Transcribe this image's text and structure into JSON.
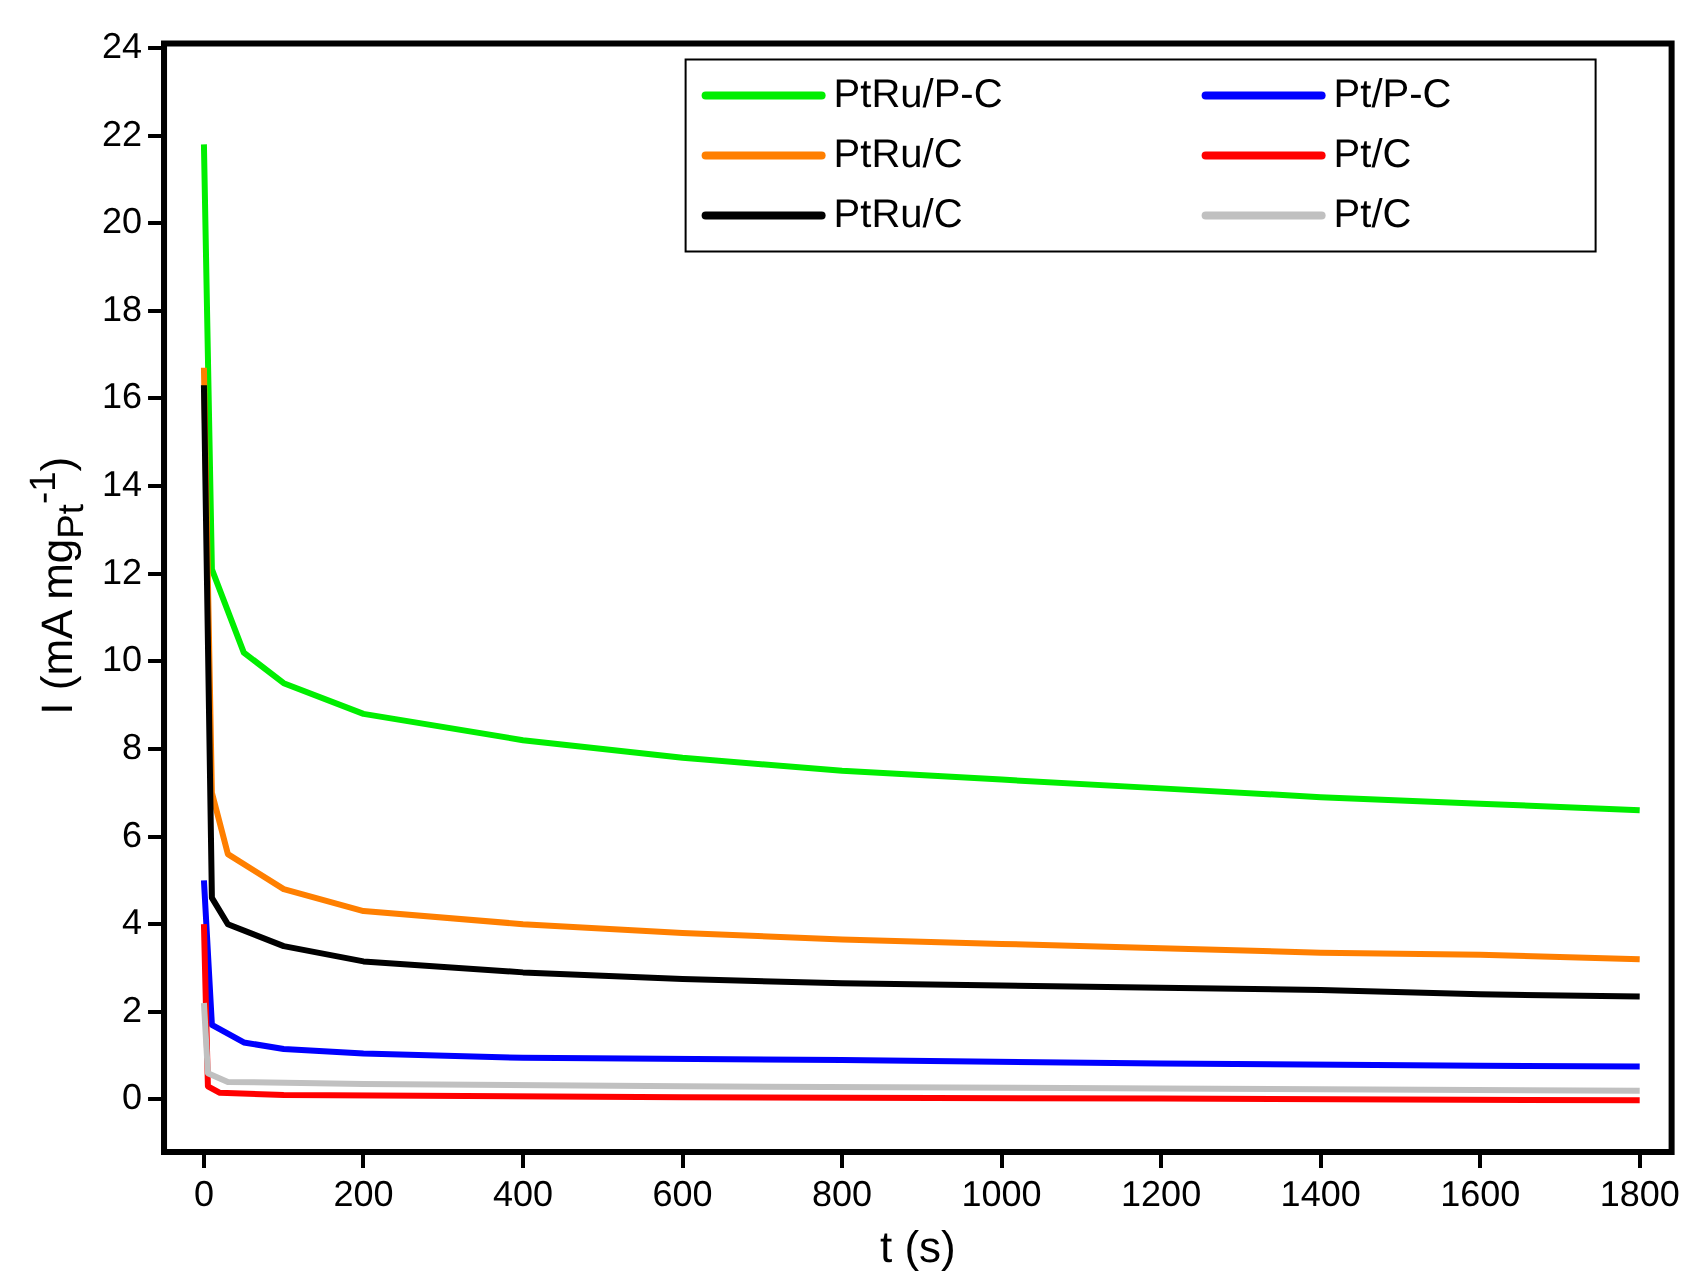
{
  "chart_data": {
    "type": "line",
    "xlabel": "t (s)",
    "ylabel": "I (mA mg$_{Pt}$$^{-1}$)",
    "xlim": [
      -50,
      1840
    ],
    "xticks": [
      0,
      200,
      400,
      600,
      800,
      1000,
      1200,
      1400,
      1600,
      1800
    ],
    "ylim": [
      -1.2,
      24.1
    ],
    "yticks": [
      0,
      2,
      4,
      6,
      8,
      10,
      12,
      14,
      16,
      18,
      20,
      22,
      24
    ],
    "grid": false,
    "legend": "top right",
    "marker": "none",
    "line_style": "solid",
    "series": [
      {
        "name": "PtRu/P-C",
        "color": "#00ee00",
        "x": [
          0,
          10,
          50,
          100,
          200,
          400,
          600,
          800,
          1000,
          1200,
          1400,
          1600,
          1800
        ],
        "values": [
          21.8,
          12.1,
          10.2,
          9.5,
          8.8,
          8.2,
          7.8,
          7.5,
          7.3,
          7.1,
          6.9,
          6.75,
          6.6
        ]
      },
      {
        "name": "PtRu/C",
        "color": "#ff7f00",
        "x": [
          0,
          10,
          30,
          100,
          200,
          400,
          600,
          800,
          1000,
          1200,
          1400,
          1600,
          1800
        ],
        "values": [
          16.7,
          7.0,
          5.6,
          4.8,
          4.3,
          4.0,
          3.8,
          3.65,
          3.55,
          3.45,
          3.35,
          3.3,
          3.2
        ]
      },
      {
        "name": "PtRu/C",
        "color": "#000000",
        "x": [
          0,
          10,
          30,
          100,
          200,
          400,
          600,
          800,
          1000,
          1200,
          1400,
          1600,
          1800
        ],
        "values": [
          16.3,
          4.6,
          4.0,
          3.5,
          3.15,
          2.9,
          2.75,
          2.65,
          2.6,
          2.55,
          2.5,
          2.4,
          2.35
        ]
      },
      {
        "name": "Pt/P-C",
        "color": "#0000ff",
        "x": [
          0,
          10,
          50,
          100,
          200,
          400,
          800,
          1200,
          1600,
          1800
        ],
        "values": [
          5.0,
          1.7,
          1.3,
          1.15,
          1.05,
          0.95,
          0.9,
          0.82,
          0.77,
          0.75
        ]
      },
      {
        "name": "Pt/C",
        "color": "#ff0000",
        "x": [
          0,
          5,
          20,
          100,
          600,
          1200,
          1800
        ],
        "values": [
          4.0,
          0.3,
          0.15,
          0.1,
          0.05,
          0.02,
          -0.02
        ]
      },
      {
        "name": "Pt/C",
        "color": "#c0c0c0",
        "x": [
          0,
          5,
          30,
          200,
          600,
          1200,
          1800
        ],
        "values": [
          2.2,
          0.6,
          0.4,
          0.35,
          0.3,
          0.25,
          0.2
        ]
      }
    ]
  }
}
